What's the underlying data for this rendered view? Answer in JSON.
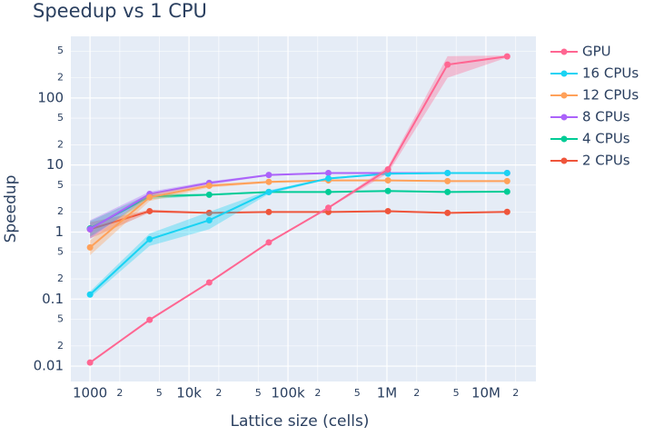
{
  "chart_data": {
    "type": "line",
    "title": "Speedup vs 1 CPU",
    "x_label": "Lattice size (cells)",
    "y_label": "Speedup",
    "xlog": true,
    "ylog": true,
    "grid": true,
    "legend": "right",
    "x": [
      1000,
      4000,
      16000,
      64000,
      256000,
      1024000,
      4096000,
      16384000
    ],
    "xlim": [
      640,
      32000000
    ],
    "xticks": [
      1000,
      {
        "value": 2000,
        "label": "2"
      },
      {
        "value": 5000,
        "label": "5"
      },
      {
        "value": 10000,
        "label": "10k"
      },
      {
        "value": 20000,
        "label": "2"
      },
      {
        "value": 50000,
        "label": "5"
      },
      {
        "value": 100000,
        "label": "100k"
      },
      {
        "value": 200000,
        "label": "2"
      },
      {
        "value": 500000,
        "label": "5"
      },
      {
        "value": 1000000,
        "label": "1M"
      },
      {
        "value": 2000000,
        "label": "2"
      },
      {
        "value": 5000000,
        "label": "5"
      },
      {
        "value": 10000000,
        "label": "10M"
      },
      {
        "value": 20000000,
        "label": "2"
      }
    ],
    "ylim": [
      0.0059,
      830
    ],
    "yticks": [
      0.01,
      {
        "value": 0.02,
        "label": "2"
      },
      {
        "value": 0.05,
        "label": "5"
      },
      0.1,
      {
        "value": 0.2,
        "label": "2"
      },
      {
        "value": 0.5,
        "label": "5"
      },
      1,
      2,
      5,
      10,
      {
        "value": 20,
        "label": "2"
      },
      {
        "value": 50,
        "label": "5"
      },
      100,
      {
        "value": 200,
        "label": "2"
      },
      {
        "value": 500,
        "label": "5"
      }
    ],
    "series": [
      {
        "name": "GPU",
        "color": "#FF6692",
        "values": [
          0.0113,
          0.049,
          0.177,
          0.7,
          2.3,
          8.6,
          314,
          416
        ],
        "lower": [
          0.011,
          0.048,
          0.175,
          0.69,
          2.25,
          7.5,
          200,
          400
        ],
        "upper": [
          0.0116,
          0.05,
          0.18,
          0.71,
          2.35,
          9.5,
          420,
          430
        ]
      },
      {
        "name": "16 CPUs",
        "color": "#19d3f3",
        "values": [
          0.117,
          0.78,
          1.5,
          3.96,
          6.3,
          7.4,
          7.6,
          7.6
        ],
        "lower": [
          0.105,
          0.62,
          1.1,
          3.7,
          6.1,
          7.2,
          7.4,
          7.5
        ],
        "upper": [
          0.13,
          0.95,
          2.0,
          4.2,
          6.5,
          7.6,
          7.8,
          7.7
        ]
      },
      {
        "name": "12 CPUs",
        "color": "#FFA15A",
        "values": [
          0.59,
          3.3,
          4.9,
          5.6,
          5.9,
          5.9,
          5.75,
          5.75
        ],
        "lower": [
          0.45,
          2.9,
          4.6,
          5.4,
          5.8,
          5.8,
          5.6,
          5.6
        ],
        "upper": [
          0.75,
          3.7,
          5.2,
          5.8,
          6.0,
          6.0,
          5.9,
          5.9
        ]
      },
      {
        "name": "8 CPUs",
        "color": "#ab63fa",
        "values": [
          1.1,
          3.7,
          5.4,
          7.1,
          7.6,
          7.6,
          7.6,
          7.6
        ],
        "lower": [
          0.8,
          3.4,
          5.1,
          6.9,
          7.4,
          7.4,
          7.4,
          7.4
        ],
        "upper": [
          1.5,
          4.0,
          5.7,
          7.3,
          7.8,
          7.8,
          7.8,
          7.8
        ]
      },
      {
        "name": "4 CPUs",
        "color": "#00cc96",
        "values": [
          1.13,
          3.4,
          3.6,
          3.96,
          3.96,
          4.1,
          3.96,
          4.0
        ],
        "lower": [
          0.85,
          3.1,
          3.5,
          3.9,
          3.9,
          4.0,
          3.9,
          3.9
        ],
        "upper": [
          1.45,
          3.7,
          3.7,
          4.05,
          4.05,
          4.2,
          4.05,
          4.05
        ]
      },
      {
        "name": "2 CPUs",
        "color": "#EF553B",
        "values": [
          1.1,
          2.05,
          1.93,
          1.99,
          1.99,
          2.05,
          1.93,
          2.0
        ],
        "lower": [
          0.8,
          1.95,
          1.88,
          1.95,
          1.95,
          2.0,
          1.88,
          1.95
        ],
        "upper": [
          1.4,
          2.15,
          1.98,
          2.03,
          2.03,
          2.1,
          1.98,
          2.05
        ]
      }
    ]
  }
}
